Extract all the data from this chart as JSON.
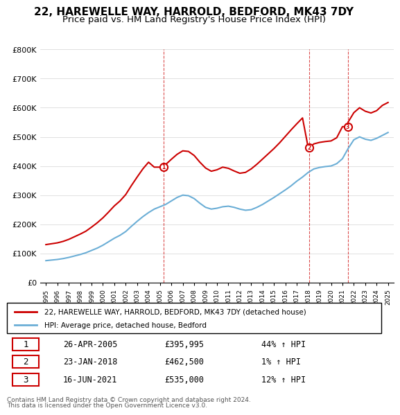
{
  "title": "22, HAREWELLE WAY, HARROLD, BEDFORD, MK43 7DY",
  "subtitle": "Price paid vs. HM Land Registry's House Price Index (HPI)",
  "title_fontsize": 11,
  "subtitle_fontsize": 9.5,
  "ylabel_ticks": [
    "£0",
    "£100K",
    "£200K",
    "£300K",
    "£400K",
    "£500K",
    "£600K",
    "£700K",
    "£800K"
  ],
  "ytick_values": [
    0,
    100000,
    200000,
    300000,
    400000,
    500000,
    600000,
    700000,
    800000
  ],
  "xlim": [
    1994.5,
    2025.5
  ],
  "ylim": [
    0,
    800000
  ],
  "transactions": [
    {
      "date": "26-APR-2005",
      "price": 395995,
      "year": 2005.32,
      "label": "1",
      "hpi_pct": "44% ↑ HPI"
    },
    {
      "date": "23-JAN-2018",
      "price": 462500,
      "year": 2018.06,
      "label": "2",
      "hpi_pct": "1% ↑ HPI"
    },
    {
      "date": "16-JUN-2021",
      "price": 535000,
      "year": 2021.46,
      "label": "3",
      "hpi_pct": "12% ↑ HPI"
    }
  ],
  "hpi_line_color": "#6baed6",
  "property_line_color": "#cc0000",
  "dashed_line_color": "#cc0000",
  "marker_color": "#cc0000",
  "footnote1": "Contains HM Land Registry data © Crown copyright and database right 2024.",
  "footnote2": "This data is licensed under the Open Government Licence v3.0.",
  "legend_property": "22, HAREWELLE WAY, HARROLD, BEDFORD, MK43 7DY (detached house)",
  "legend_hpi": "HPI: Average price, detached house, Bedford",
  "hpi_data_x": [
    1995,
    1995.5,
    1996,
    1996.5,
    1997,
    1997.5,
    1998,
    1998.5,
    1999,
    1999.5,
    2000,
    2000.5,
    2001,
    2001.5,
    2002,
    2002.5,
    2003,
    2003.5,
    2004,
    2004.5,
    2005,
    2005.5,
    2006,
    2006.5,
    2007,
    2007.5,
    2008,
    2008.5,
    2009,
    2009.5,
    2010,
    2010.5,
    2011,
    2011.5,
    2012,
    2012.5,
    2013,
    2013.5,
    2014,
    2014.5,
    2015,
    2015.5,
    2016,
    2016.5,
    2017,
    2017.5,
    2018,
    2018.5,
    2019,
    2019.5,
    2020,
    2020.5,
    2021,
    2021.5,
    2022,
    2022.5,
    2023,
    2023.5,
    2024,
    2024.5,
    2025
  ],
  "hpi_data_y": [
    75000,
    77000,
    79000,
    82000,
    86000,
    91000,
    96000,
    102000,
    110000,
    118000,
    128000,
    140000,
    152000,
    162000,
    175000,
    193000,
    210000,
    226000,
    240000,
    252000,
    260000,
    268000,
    280000,
    292000,
    300000,
    298000,
    288000,
    272000,
    258000,
    252000,
    255000,
    260000,
    262000,
    258000,
    252000,
    248000,
    250000,
    258000,
    268000,
    280000,
    292000,
    305000,
    318000,
    332000,
    348000,
    362000,
    378000,
    390000,
    395000,
    398000,
    400000,
    408000,
    425000,
    460000,
    490000,
    500000,
    492000,
    488000,
    495000,
    505000,
    515000
  ],
  "property_data_x": [
    1995,
    1995.5,
    1996,
    1996.5,
    1997,
    1997.5,
    1998,
    1998.5,
    1999,
    1999.5,
    2000,
    2000.5,
    2001,
    2001.5,
    2002,
    2002.5,
    2003,
    2003.5,
    2004,
    2004.5,
    2005,
    2005.32,
    2005.5,
    2006,
    2006.5,
    2007,
    2007.5,
    2008,
    2008.5,
    2009,
    2009.5,
    2010,
    2010.5,
    2011,
    2011.5,
    2012,
    2012.5,
    2013,
    2013.5,
    2014,
    2014.5,
    2015,
    2015.5,
    2016,
    2016.5,
    2017,
    2017.5,
    2018,
    2018.06,
    2018.5,
    2019,
    2019.5,
    2020,
    2020.5,
    2021,
    2021.46,
    2021.5,
    2022,
    2022.5,
    2023,
    2023.5,
    2024,
    2024.5,
    2025
  ],
  "property_data_y": [
    130000,
    133000,
    136000,
    141000,
    148000,
    157000,
    166000,
    176000,
    190000,
    205000,
    222000,
    242000,
    263000,
    280000,
    302000,
    333000,
    362000,
    390000,
    413000,
    396000,
    395995,
    395995,
    405000,
    423000,
    440000,
    452000,
    450000,
    436000,
    413000,
    393000,
    382000,
    387000,
    396000,
    392000,
    383000,
    375000,
    378000,
    390000,
    406000,
    424000,
    442000,
    460000,
    480000,
    502000,
    524000,
    545000,
    565000,
    462500,
    462500,
    476000,
    481000,
    484000,
    486000,
    497000,
    535000,
    535000,
    551000,
    583000,
    600000,
    588000,
    582000,
    590000,
    608000,
    618000
  ]
}
